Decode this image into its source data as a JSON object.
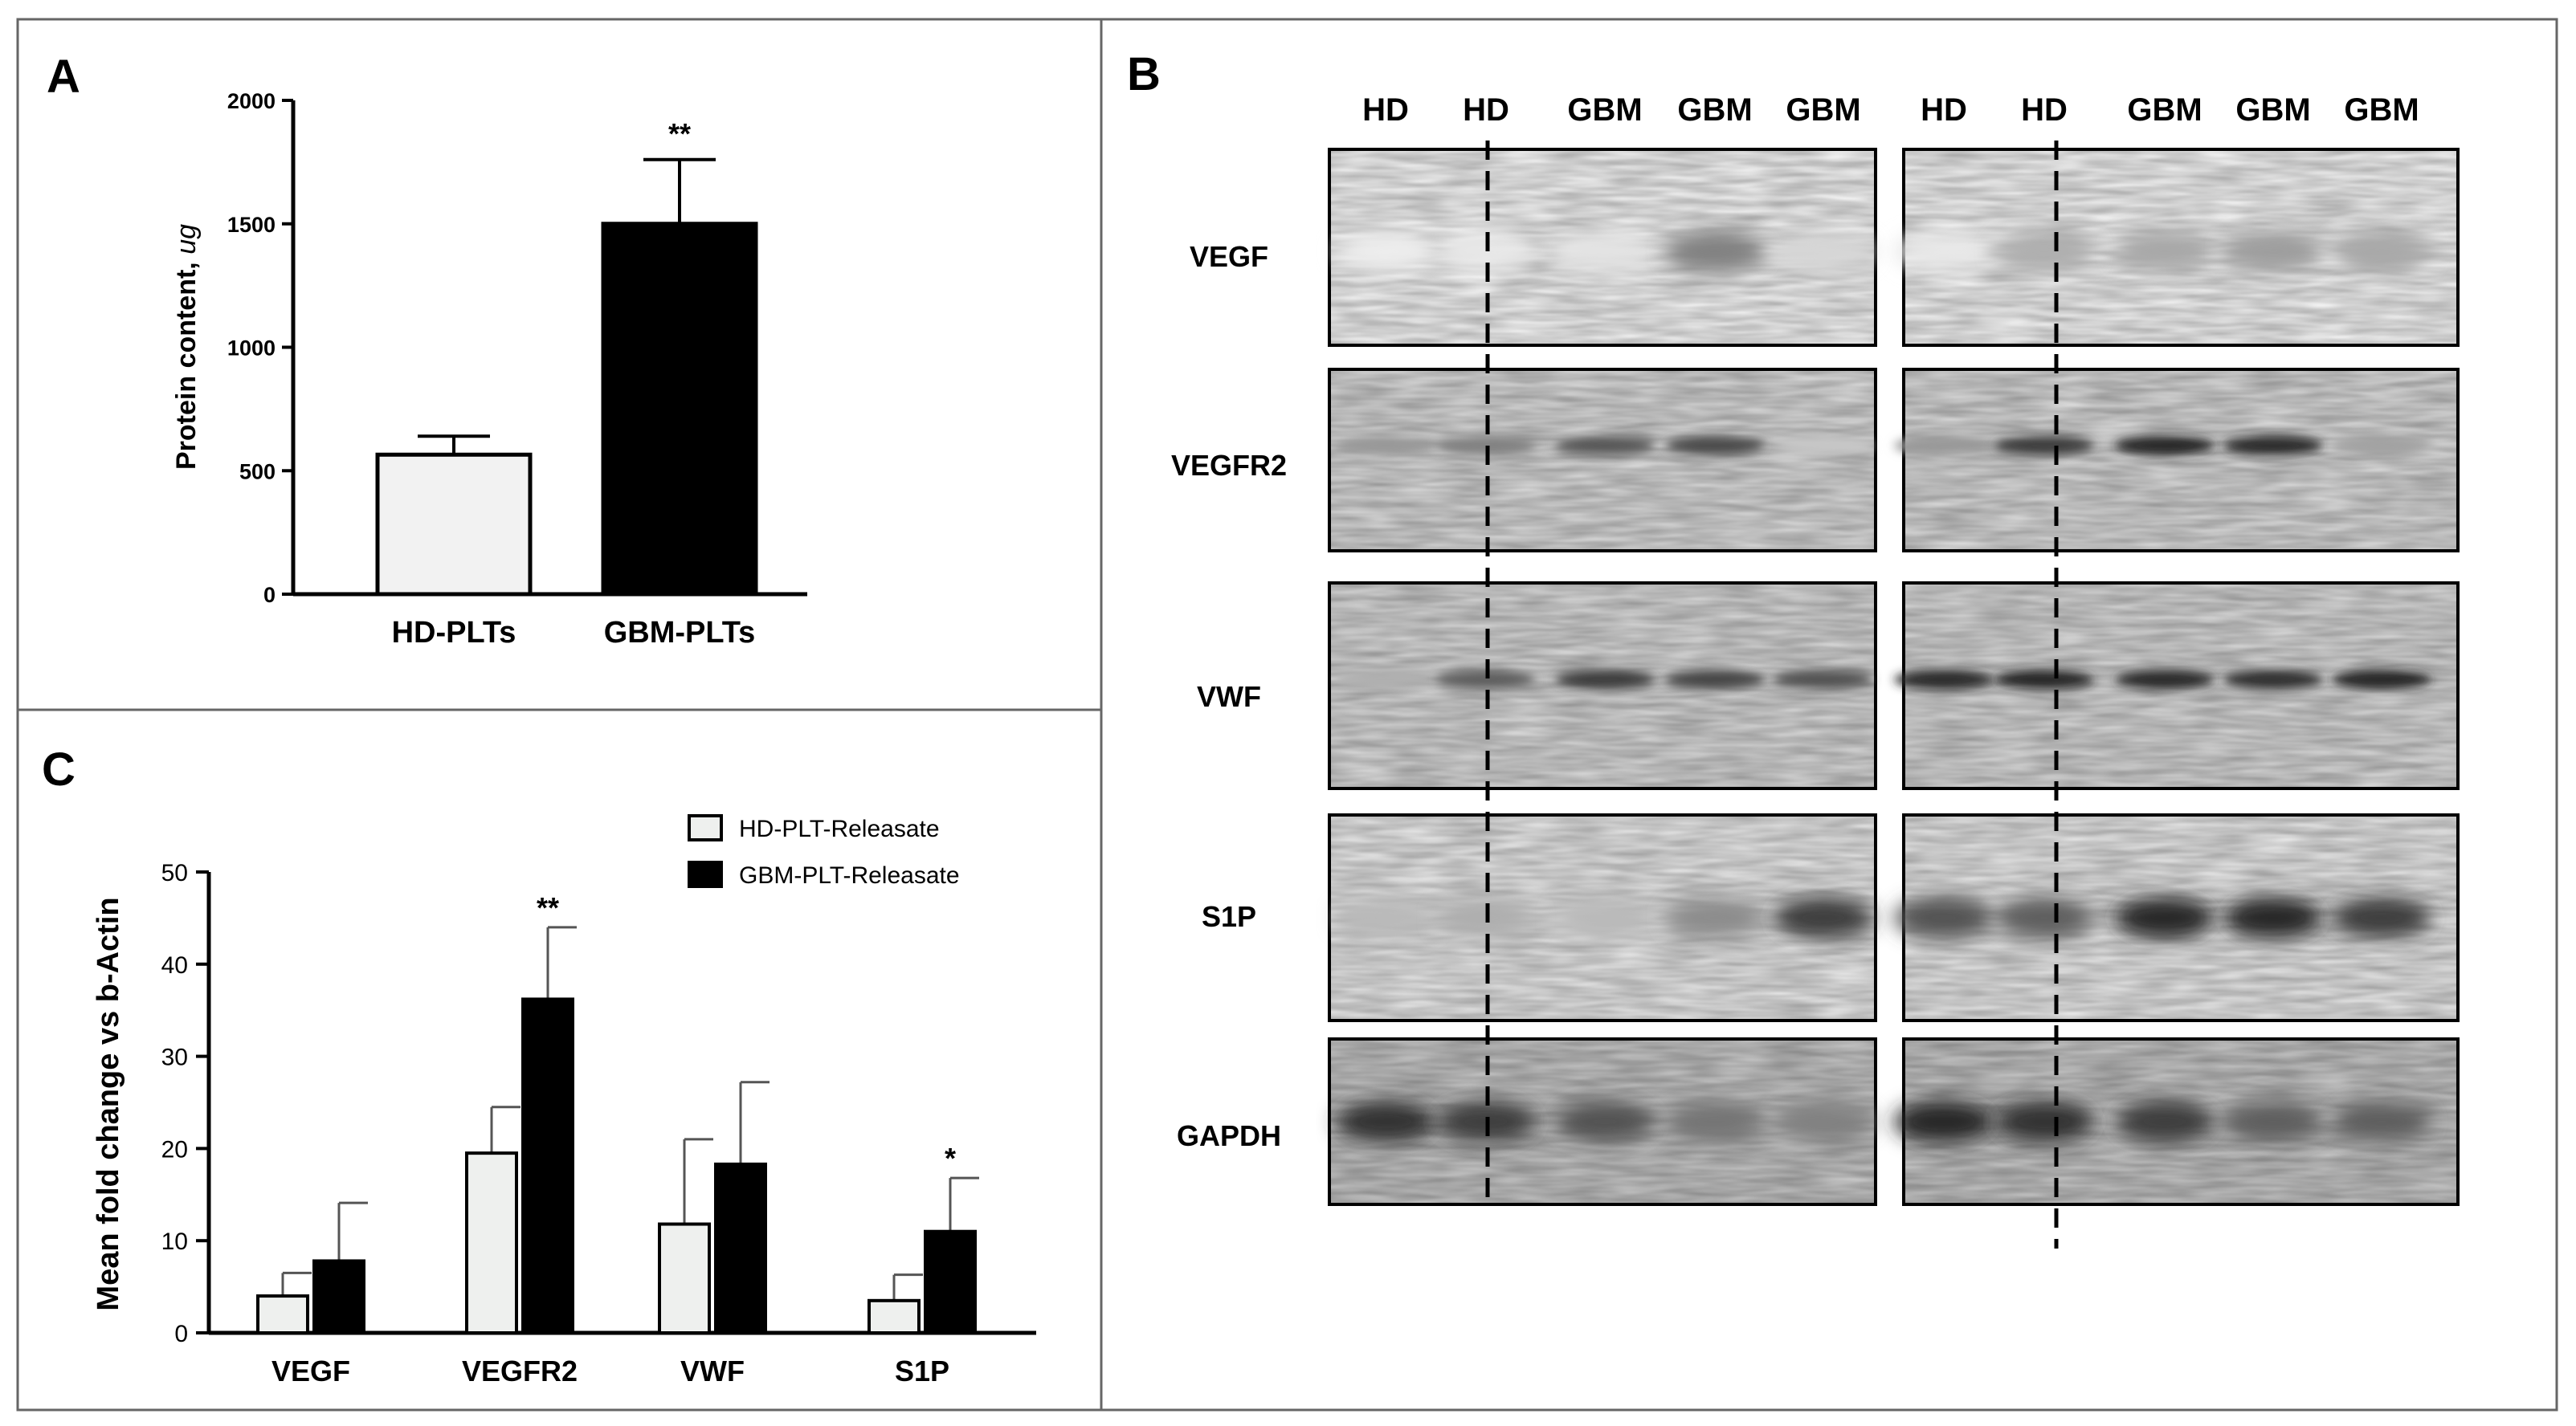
{
  "panels": {
    "a": {
      "letter": "A"
    },
    "b": {
      "letter": "B"
    },
    "c": {
      "letter": "C"
    }
  },
  "chart_data": [
    {
      "type": "bar",
      "panel": "A",
      "categories": [
        "HD-PLTs",
        "GBM-PLTs"
      ],
      "series": [
        {
          "values": [
            565,
            1500
          ],
          "errors": [
            75,
            260
          ]
        }
      ],
      "ylabel_main": "Protein content, ",
      "ylabel_unit": "ug",
      "ylim": [
        0,
        2000
      ],
      "yticks": [
        0,
        500,
        1000,
        1500,
        2000
      ],
      "significance": [
        "",
        "**"
      ],
      "bar_colors": [
        "#f2f2f2",
        "#000000"
      ],
      "grid": false
    },
    {
      "type": "bar",
      "panel": "C",
      "categories": [
        "VEGF",
        "VEGFR2",
        "VWF",
        "S1P"
      ],
      "series": [
        {
          "name": "HD-PLT-Releasate",
          "values": [
            4,
            19.5,
            11.8,
            3.5
          ],
          "errors": [
            2.5,
            5,
            9.2,
            2.8
          ],
          "color": "#eef0ee"
        },
        {
          "name": "GBM-PLT-Releasate",
          "values": [
            7.8,
            36.2,
            18.3,
            11
          ],
          "errors": [
            6.3,
            7.8,
            8.9,
            5.8
          ],
          "color": "#000000"
        }
      ],
      "ylabel": "Mean fold change vs b-Actin",
      "ylim": [
        0,
        50
      ],
      "yticks": [
        0,
        10,
        20,
        30,
        40,
        50
      ],
      "significance": [
        "",
        "**",
        "",
        "*"
      ],
      "legend_position": "top-right",
      "grid": false
    }
  ],
  "blot": {
    "lanes_left": [
      "HD",
      "HD",
      "GBM",
      "GBM",
      "GBM"
    ],
    "lanes_right": [
      "HD",
      "HD",
      "GBM",
      "GBM",
      "GBM"
    ],
    "rows": [
      "VEGF",
      "VEGFR2",
      "VWF",
      "S1P",
      "GAPDH"
    ]
  }
}
